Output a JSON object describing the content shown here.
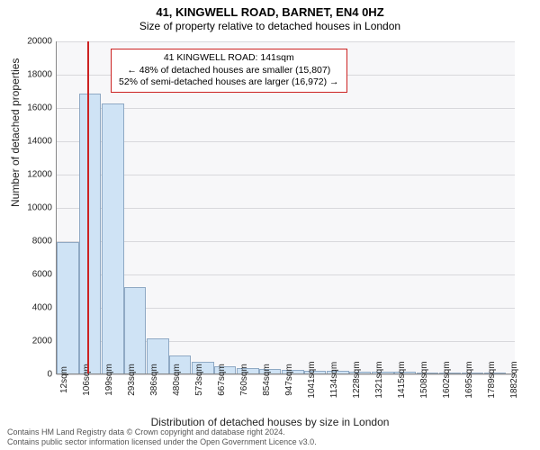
{
  "title": {
    "main": "41, KINGWELL ROAD, BARNET, EN4 0HZ",
    "sub": "Size of property relative to detached houses in London"
  },
  "chart": {
    "type": "histogram",
    "background_color": "#f7f7f9",
    "grid_color": "#d8d8dc",
    "y_axis": {
      "label": "Number of detached properties",
      "min": 0,
      "max": 20000,
      "tick_step": 2000,
      "ticks": [
        0,
        2000,
        4000,
        6000,
        8000,
        10000,
        12000,
        14000,
        16000,
        18000,
        20000
      ]
    },
    "x_axis": {
      "label": "Distribution of detached houses by size in London",
      "tick_labels": [
        "12sqm",
        "106sqm",
        "199sqm",
        "293sqm",
        "386sqm",
        "480sqm",
        "573sqm",
        "667sqm",
        "760sqm",
        "854sqm",
        "947sqm",
        "1041sqm",
        "1134sqm",
        "1228sqm",
        "1321sqm",
        "1415sqm",
        "1508sqm",
        "1602sqm",
        "1695sqm",
        "1789sqm",
        "1882sqm"
      ],
      "tick_values": [
        12,
        106,
        199,
        293,
        386,
        480,
        573,
        667,
        760,
        854,
        947,
        1041,
        1134,
        1228,
        1321,
        1415,
        1508,
        1602,
        1695,
        1789,
        1882
      ],
      "min": 12,
      "max": 1920
    },
    "bars": {
      "values": [
        7900,
        16800,
        16200,
        5200,
        2100,
        1100,
        700,
        450,
        350,
        280,
        220,
        180,
        150,
        120,
        100,
        90,
        80,
        70,
        60,
        50
      ],
      "fill_color": "#cfe3f5",
      "border_color": "#8fa9c4",
      "bin_edges": [
        12,
        106,
        199,
        293,
        386,
        480,
        573,
        667,
        760,
        854,
        947,
        1041,
        1134,
        1228,
        1321,
        1415,
        1508,
        1602,
        1695,
        1789,
        1882
      ]
    },
    "marker": {
      "value": 141,
      "color": "#cc2222"
    },
    "callout": {
      "border_color": "#cc2222",
      "lines": [
        "41 KINGWELL ROAD: 141sqm",
        "← 48% of detached houses are smaller (15,807)",
        "52% of semi-detached houses are larger (16,972) →"
      ]
    }
  },
  "footer": {
    "line1": "Contains HM Land Registry data © Crown copyright and database right 2024.",
    "line2": "Contains public sector information licensed under the Open Government Licence v3.0."
  }
}
